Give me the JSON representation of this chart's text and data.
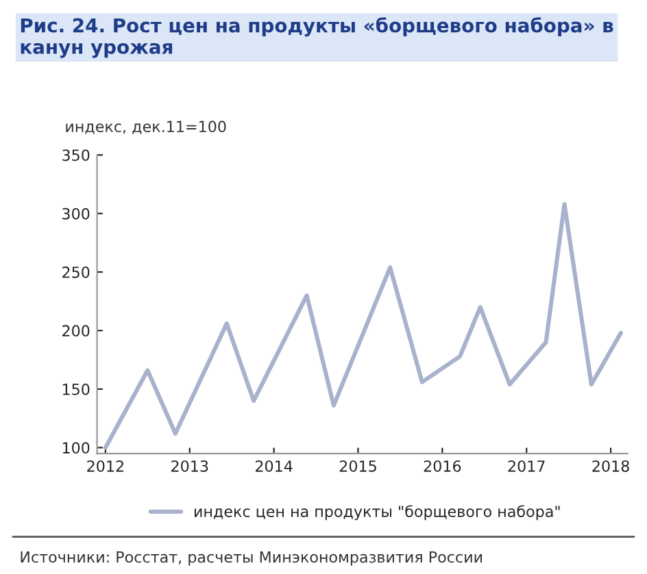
{
  "chart_data": {
    "type": "line",
    "title": "Рис. 24. Рост цен на продукты «борщевого набора» в канун урожая",
    "ylabel": "индекс, дек.11=100",
    "series": [
      {
        "name": "индекс цен на продукты \"борщевого набора\"",
        "color": "#a9b2cc",
        "x": [
          2012.0,
          2012.5,
          2012.83,
          2013.44,
          2013.76,
          2014.39,
          2014.71,
          2015.38,
          2015.76,
          2016.21,
          2016.45,
          2016.8,
          2017.23,
          2017.45,
          2017.77,
          2018.12
        ],
        "values": [
          100,
          166,
          112,
          206,
          140,
          230,
          136,
          254,
          156,
          178,
          220,
          154,
          190,
          308,
          154,
          198
        ]
      }
    ],
    "xlim": [
      2011.9,
      2018.2
    ],
    "xticks": [
      2012,
      2013,
      2014,
      2015,
      2016,
      2017,
      2018
    ],
    "ylim": [
      95,
      350
    ],
    "yticks": [
      100,
      150,
      200,
      250,
      300,
      350
    ],
    "grid": false,
    "legend": "bottom",
    "marker": "none",
    "line_style": "solid",
    "annotations": [
      "Источники: Росстат, расчеты Минэкономразвития России"
    ]
  }
}
